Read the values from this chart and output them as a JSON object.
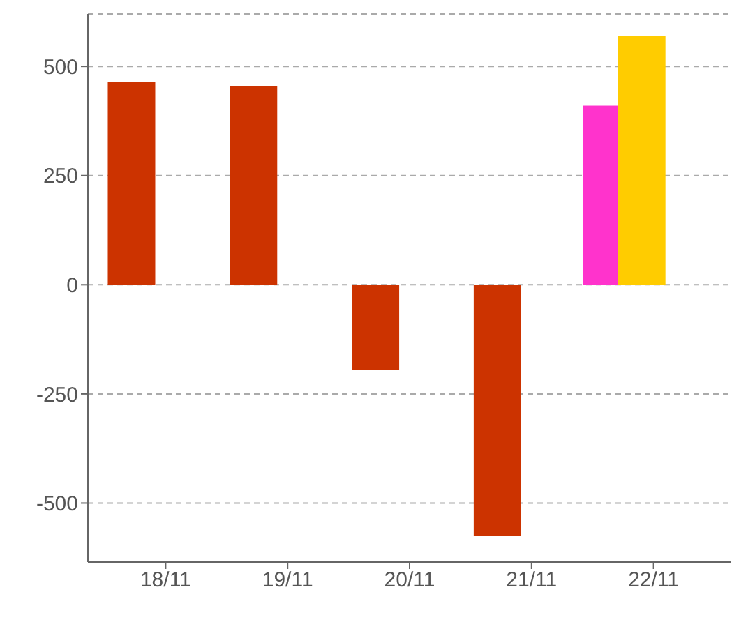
{
  "chart_data": {
    "type": "bar",
    "categories": [
      "18/11",
      "19/11",
      "20/11",
      "21/11",
      "22/11"
    ],
    "series": [
      {
        "color": "#cc3300",
        "values": [
          465,
          455,
          -195,
          -575,
          null
        ]
      },
      {
        "color": "#ff33cc",
        "values": [
          null,
          null,
          null,
          null,
          410
        ]
      },
      {
        "color": "#ffcc00",
        "values": [
          null,
          null,
          null,
          null,
          570
        ]
      }
    ],
    "ylim": [
      -635,
      620
    ],
    "yticks": [
      -500,
      -250,
      0,
      250,
      500
    ],
    "grid": "y",
    "legend": false
  }
}
